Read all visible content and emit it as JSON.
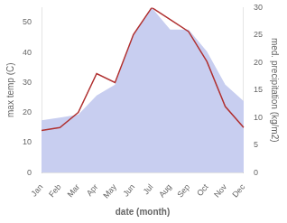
{
  "chart_data": {
    "type": "line",
    "categories": [
      "Jan",
      "Feb",
      "Mar",
      "Apr",
      "May",
      "Jun",
      "Jul",
      "Aug",
      "Sep",
      "Oct",
      "Nov",
      "Dec"
    ],
    "xlabel": "date (month)",
    "ylabel": "max temp (C)",
    "y2label": "med. precipitation (kg/m2)",
    "series": [
      {
        "type": "area",
        "color": "#c8cef0",
        "axis": "y2",
        "values": [
          9.5,
          10,
          10.5,
          14,
          16,
          25,
          30,
          26,
          26,
          22,
          16,
          13
        ]
      },
      {
        "type": "line",
        "color": "#b03030",
        "values": [
          14,
          15,
          20,
          33,
          30,
          46,
          55,
          51,
          47,
          37,
          22,
          15
        ]
      }
    ],
    "ylim": [
      0,
      55
    ],
    "yticks": [
      0,
      10,
      20,
      30,
      40,
      50
    ],
    "y2lim": [
      0,
      30
    ],
    "y2ticks": [
      0,
      5,
      10,
      15,
      20,
      25,
      30
    ],
    "grid": false
  }
}
